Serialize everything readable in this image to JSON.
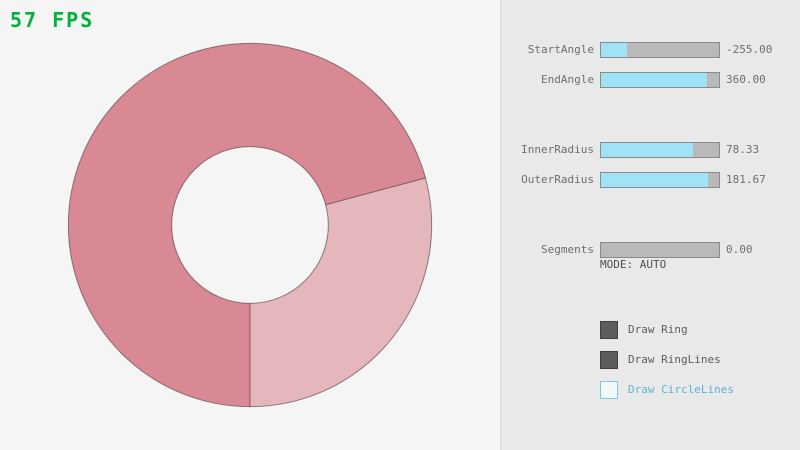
{
  "fps_text": "57 FPS",
  "ring": {
    "start_angle": -255.0,
    "end_angle": 360.0,
    "inner_radius": 78.33,
    "outer_radius": 181.67,
    "segments": 0,
    "color_dark": "#d98994",
    "color_light": "#e6b6bd",
    "background": "#f5f5f5"
  },
  "controls": {
    "sliders": [
      {
        "label": "StartAngle",
        "value": "-255.00",
        "fill_pct": 21.67
      },
      {
        "label": "EndAngle",
        "value": "360.00",
        "fill_pct": 90.0
      },
      {
        "label": "InnerRadius",
        "value": "78.33",
        "fill_pct": 78.33
      },
      {
        "label": "OuterRadius",
        "value": "181.67",
        "fill_pct": 90.84
      },
      {
        "label": "Segments",
        "value": "0.00",
        "fill_pct": 0
      }
    ],
    "mode_text": "MODE: AUTO",
    "checkboxes": [
      {
        "label": "Draw Ring",
        "checked": true
      },
      {
        "label": "Draw RingLines",
        "checked": true
      },
      {
        "label": "Draw CircleLines",
        "checked": false
      }
    ]
  },
  "colors": {
    "accent_cyan": "#9fe3f8",
    "fps_green": "#00b13c",
    "panel_gray": "#e9e9e9"
  }
}
